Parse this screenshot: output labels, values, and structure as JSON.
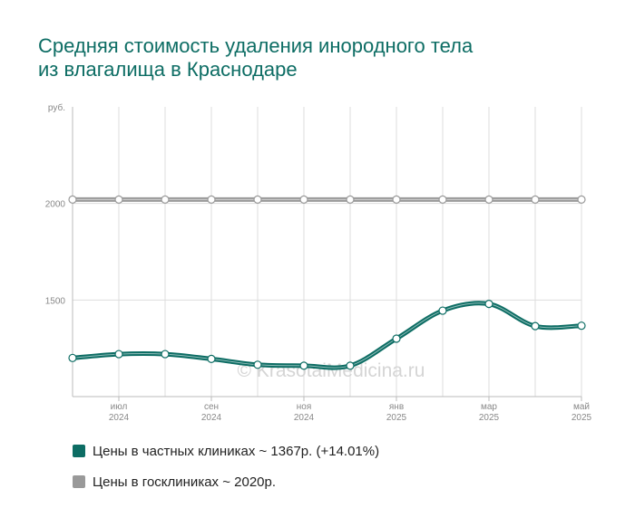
{
  "title_lines": [
    "Средняя стоимость удаления инородного тела",
    "из влагалища в Краснодаре"
  ],
  "watermark": "© KrasotaiMedicina.ru",
  "colors": {
    "private": "#0d6d64",
    "public": "#999999",
    "grid": "#dddddd",
    "title": "#0d6d64"
  },
  "legend": [
    {
      "label": "Цены в частных клиниках ~ 1367р. (+14.01%)",
      "color": "#0d6d64"
    },
    {
      "label": "Цены в госклиниках ~ 2020р.",
      "color": "#999999"
    }
  ],
  "chart_data": {
    "type": "line",
    "title": "",
    "ylabel": "руб.",
    "ylim": [
      1000,
      2500
    ],
    "yticks": [
      1500,
      2000
    ],
    "x": [
      "2024-06",
      "2024-07",
      "2024-08",
      "2024-09",
      "2024-10",
      "2024-11",
      "2024-12",
      "2025-01",
      "2025-02",
      "2025-03",
      "2025-04",
      "2025-05"
    ],
    "xtick_labels": [
      {
        "index": 1,
        "month": "июл",
        "year": "2024"
      },
      {
        "index": 3,
        "month": "сен",
        "year": "2024"
      },
      {
        "index": 5,
        "month": "ноя",
        "year": "2024"
      },
      {
        "index": 7,
        "month": "янв",
        "year": "2025"
      },
      {
        "index": 9,
        "month": "мар",
        "year": "2025"
      },
      {
        "index": 11,
        "month": "май",
        "year": "2025"
      }
    ],
    "grid": true,
    "legend_position": "bottom-left",
    "series": [
      {
        "name": "Цены в частных клиниках",
        "color": "#0d6d64",
        "values": [
          1200,
          1220,
          1220,
          1195,
          1165,
          1160,
          1160,
          1300,
          1445,
          1480,
          1365,
          1367
        ]
      },
      {
        "name": "Цены в госклиниках",
        "color": "#999999",
        "values": [
          2020,
          2020,
          2020,
          2020,
          2020,
          2020,
          2020,
          2020,
          2020,
          2020,
          2020,
          2020
        ]
      }
    ]
  }
}
